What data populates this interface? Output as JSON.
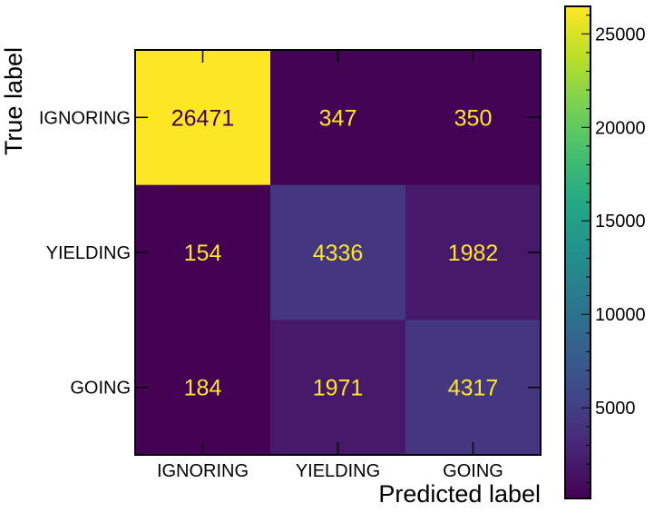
{
  "chart_data": {
    "type": "heatmap",
    "title": "",
    "xlabel": "Predicted label",
    "ylabel": "True label",
    "x_categories": [
      "IGNORING",
      "YIELDING",
      "GOING"
    ],
    "y_categories": [
      "IGNORING",
      "YIELDING",
      "GOING"
    ],
    "values": [
      [
        26471,
        347,
        350
      ],
      [
        154,
        4336,
        1982
      ],
      [
        184,
        1971,
        4317
      ]
    ],
    "colormap": "viridis",
    "cell_text_color_dark": "#fde725",
    "cell_text_color_light": "#440154",
    "colorbar": {
      "min": 154,
      "max": 26471,
      "ticks": [
        5000,
        10000,
        15000,
        20000,
        25000
      ],
      "tick_labels": [
        "5000",
        "10000",
        "15000",
        "20000",
        "25000"
      ]
    }
  }
}
